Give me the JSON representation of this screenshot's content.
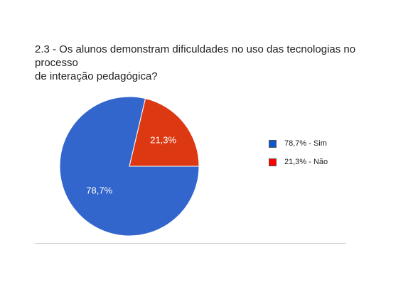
{
  "chart_data": {
    "type": "pie",
    "title_lines": [
      "2.3 - Os alunos demonstram dificuldades no uso das tecnologias no processo",
      "de interação pedagógica?"
    ],
    "slices": [
      {
        "label": "Sim",
        "value": 78.7,
        "display": "78,7%",
        "legend": "78,7% - Sim",
        "color": "#3366cc"
      },
      {
        "label": "Não",
        "value": 21.3,
        "display": "21,3%",
        "legend": "21,3% - Não",
        "color": "#dc3912"
      }
    ],
    "legend_position": "right"
  },
  "legend_swatch_colors": [
    "#1155cc",
    "#ff0000"
  ]
}
